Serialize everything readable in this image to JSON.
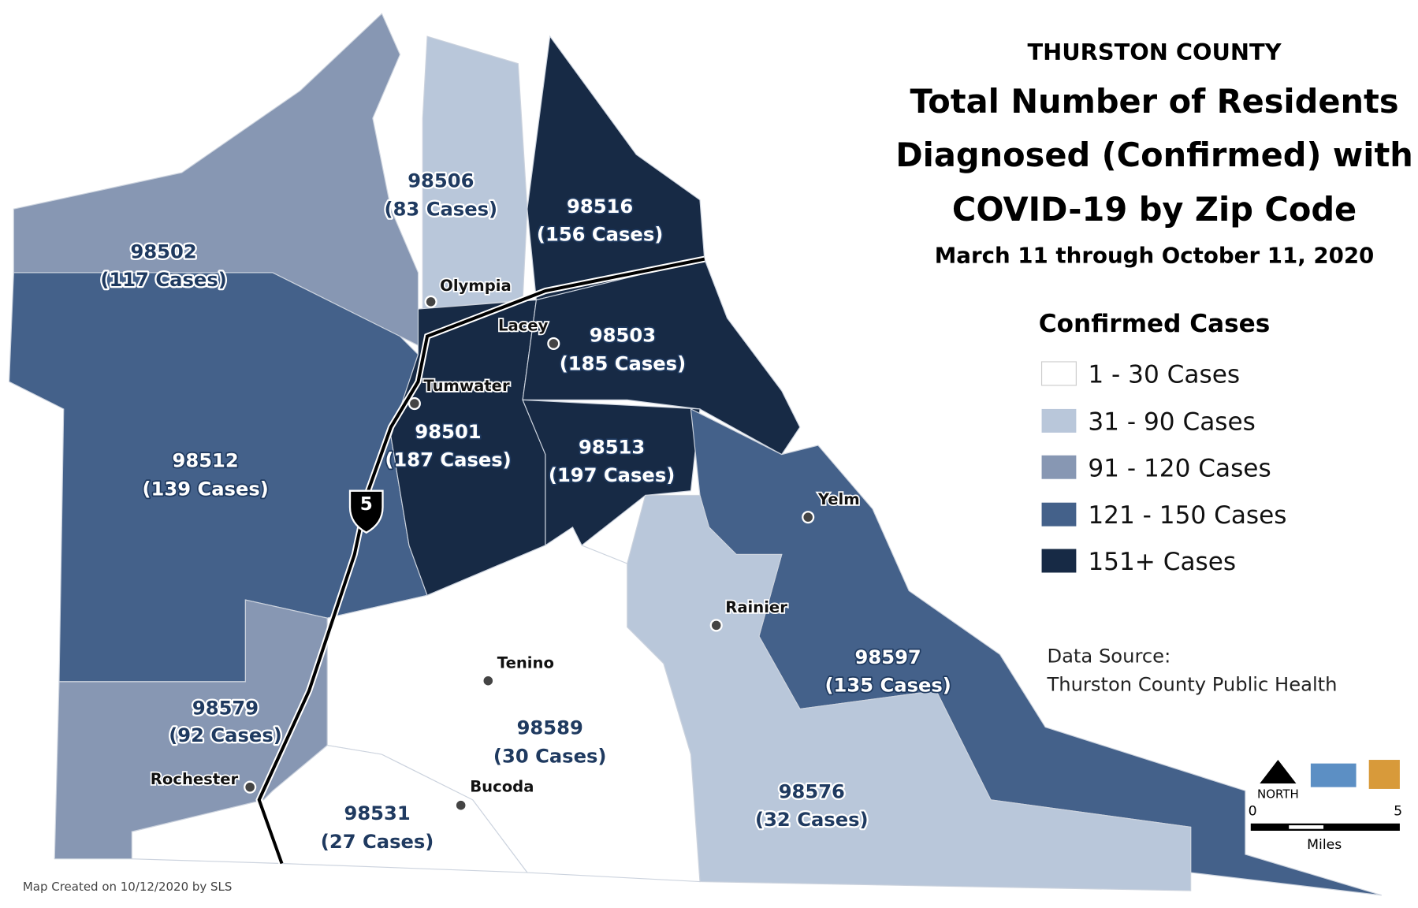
{
  "header": {
    "county": "THURSTON COUNTY",
    "title_lines": [
      "Total Number of Residents",
      "Diagnosed (Confirmed) with",
      "COVID-19 by Zip Code"
    ],
    "date_range": "March 11 through October 11, 2020"
  },
  "legend": {
    "title": "Confirmed Cases",
    "items": [
      {
        "label": "1 - 30 Cases",
        "color": "#ffffff"
      },
      {
        "label": "31 - 90 Cases",
        "color": "#b9c7da"
      },
      {
        "label": "91 - 120 Cases",
        "color": "#8797b3"
      },
      {
        "label": "121 - 150 Cases",
        "color": "#44618a"
      },
      {
        "label": "151+ Cases",
        "color": "#172a45"
      }
    ]
  },
  "zones": [
    {
      "zip": "98502",
      "cases": "(117 Cases)",
      "color": "#8797b3"
    },
    {
      "zip": "98506",
      "cases": "(83 Cases)",
      "color": "#b9c7da"
    },
    {
      "zip": "98516",
      "cases": "(156 Cases)",
      "color": "#172a45"
    },
    {
      "zip": "98512",
      "cases": "(139 Cases)",
      "color": "#44618a"
    },
    {
      "zip": "98501",
      "cases": "(187 Cases)",
      "color": "#172a45"
    },
    {
      "zip": "98503",
      "cases": "(185 Cases)",
      "color": "#172a45"
    },
    {
      "zip": "98513",
      "cases": "(197 Cases)",
      "color": "#172a45"
    },
    {
      "zip": "98597",
      "cases": "(135 Cases)",
      "color": "#44618a"
    },
    {
      "zip": "98576",
      "cases": "(32 Cases)",
      "color": "#b9c7da"
    },
    {
      "zip": "98589",
      "cases": "(30 Cases)",
      "color": "#ffffff"
    },
    {
      "zip": "98531",
      "cases": "(27 Cases)",
      "color": "#ffffff"
    },
    {
      "zip": "98579",
      "cases": "(92 Cases)",
      "color": "#8797b3"
    }
  ],
  "cities": [
    "Olympia",
    "Lacey",
    "Tumwater",
    "Yelm",
    "Rainier",
    "Tenino",
    "Bucoda",
    "Rochester"
  ],
  "highway": "5",
  "source": {
    "label": "Data Source:",
    "name": "Thurston County Public Health"
  },
  "scale": {
    "north": "NORTH",
    "start": "0",
    "end": "5",
    "unit": "Miles"
  },
  "credit": "Map Created on 10/12/2020 by SLS"
}
